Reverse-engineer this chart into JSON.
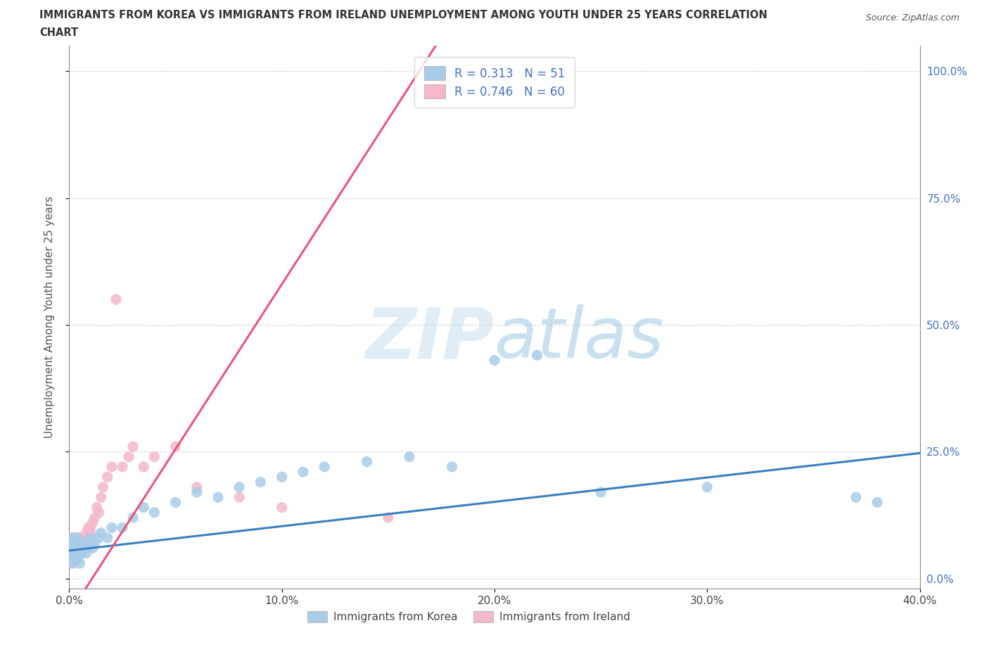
{
  "title_line1": "IMMIGRANTS FROM KOREA VS IMMIGRANTS FROM IRELAND UNEMPLOYMENT AMONG YOUTH UNDER 25 YEARS CORRELATION",
  "title_line2": "CHART",
  "source": "Source: ZipAtlas.com",
  "ylabel": "Unemployment Among Youth under 25 years",
  "xlim": [
    0.0,
    0.4
  ],
  "ylim": [
    -0.02,
    1.05
  ],
  "korea_R": 0.313,
  "korea_N": 51,
  "ireland_R": 0.746,
  "ireland_N": 60,
  "korea_color": "#a8cce8",
  "ireland_color": "#f4b8c8",
  "korea_line_color": "#3a7fc1",
  "ireland_line_color": "#e8567a",
  "legend_label_korea": "Immigrants from Korea",
  "legend_label_ireland": "Immigrants from Ireland",
  "watermark_zip": "ZIP",
  "watermark_atlas": "atlas",
  "background_color": "#ffffff",
  "grid_color": "#cccccc",
  "korea_intercept": 0.055,
  "korea_slope": 0.48,
  "ireland_intercept": -0.07,
  "ireland_slope": 6.5,
  "korea_x": [
    0.001,
    0.001,
    0.001,
    0.002,
    0.002,
    0.002,
    0.002,
    0.003,
    0.003,
    0.003,
    0.003,
    0.004,
    0.004,
    0.004,
    0.004,
    0.005,
    0.005,
    0.005,
    0.006,
    0.006,
    0.007,
    0.008,
    0.009,
    0.01,
    0.011,
    0.012,
    0.014,
    0.015,
    0.018,
    0.02,
    0.025,
    0.03,
    0.035,
    0.04,
    0.05,
    0.06,
    0.07,
    0.08,
    0.09,
    0.1,
    0.11,
    0.12,
    0.14,
    0.16,
    0.18,
    0.2,
    0.22,
    0.25,
    0.3,
    0.37,
    0.38
  ],
  "korea_y": [
    0.05,
    0.07,
    0.04,
    0.06,
    0.08,
    0.05,
    0.03,
    0.06,
    0.07,
    0.04,
    0.05,
    0.06,
    0.08,
    0.05,
    0.04,
    0.07,
    0.05,
    0.03,
    0.06,
    0.05,
    0.07,
    0.05,
    0.06,
    0.08,
    0.06,
    0.07,
    0.08,
    0.09,
    0.08,
    0.1,
    0.1,
    0.12,
    0.14,
    0.13,
    0.15,
    0.17,
    0.16,
    0.18,
    0.19,
    0.2,
    0.21,
    0.22,
    0.23,
    0.24,
    0.22,
    0.43,
    0.44,
    0.17,
    0.18,
    0.16,
    0.15
  ],
  "ireland_x": [
    0.001,
    0.001,
    0.001,
    0.001,
    0.001,
    0.001,
    0.001,
    0.001,
    0.001,
    0.002,
    0.002,
    0.002,
    0.002,
    0.002,
    0.002,
    0.002,
    0.003,
    0.003,
    0.003,
    0.003,
    0.003,
    0.003,
    0.004,
    0.004,
    0.004,
    0.004,
    0.005,
    0.005,
    0.005,
    0.005,
    0.006,
    0.006,
    0.006,
    0.007,
    0.007,
    0.008,
    0.008,
    0.009,
    0.009,
    0.01,
    0.01,
    0.011,
    0.012,
    0.013,
    0.014,
    0.015,
    0.016,
    0.018,
    0.02,
    0.022,
    0.025,
    0.028,
    0.03,
    0.035,
    0.04,
    0.05,
    0.06,
    0.08,
    0.1,
    0.15
  ],
  "ireland_y": [
    0.05,
    0.06,
    0.07,
    0.04,
    0.03,
    0.08,
    0.05,
    0.06,
    0.04,
    0.07,
    0.05,
    0.06,
    0.08,
    0.04,
    0.05,
    0.07,
    0.06,
    0.05,
    0.08,
    0.04,
    0.06,
    0.07,
    0.05,
    0.06,
    0.08,
    0.04,
    0.07,
    0.05,
    0.06,
    0.08,
    0.07,
    0.05,
    0.06,
    0.08,
    0.07,
    0.09,
    0.06,
    0.08,
    0.1,
    0.09,
    0.1,
    0.11,
    0.12,
    0.14,
    0.13,
    0.16,
    0.18,
    0.2,
    0.22,
    0.55,
    0.22,
    0.24,
    0.26,
    0.22,
    0.24,
    0.26,
    0.18,
    0.16,
    0.14,
    0.12
  ]
}
